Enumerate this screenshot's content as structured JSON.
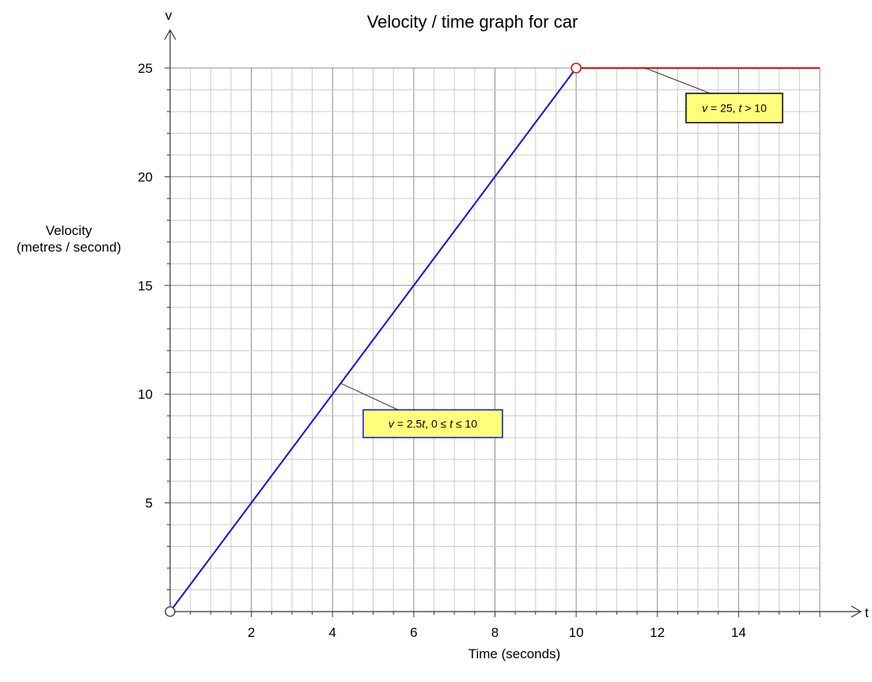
{
  "chart_data": {
    "type": "line",
    "title": "Velocity / time graph for car",
    "xlabel": "Time (seconds)",
    "ylabel_line1": "Velocity",
    "ylabel_line2": "(metres / second)",
    "x_axis_letter": "t",
    "y_axis_letter": "v",
    "xlim": [
      0,
      16
    ],
    "ylim": [
      0,
      25
    ],
    "x_ticks": [
      2,
      4,
      6,
      8,
      10,
      12,
      14
    ],
    "y_ticks": [
      5,
      10,
      15,
      20,
      25
    ],
    "x_minor_step": 0.5,
    "y_minor_step": 1,
    "grid": true,
    "series": [
      {
        "color": "#1010e0",
        "points": [
          [
            0,
            0
          ],
          [
            10,
            25
          ]
        ]
      },
      {
        "color": "#e01010",
        "points": [
          [
            10,
            25
          ],
          [
            16,
            25
          ]
        ]
      }
    ],
    "markers": [
      {
        "x": 0,
        "y": 0,
        "color": "#555555"
      },
      {
        "x": 10,
        "y": 25,
        "color": "#e01010"
      }
    ],
    "annotations": [
      {
        "parts": [
          [
            "v",
            true
          ],
          [
            " = 2.5",
            false
          ],
          [
            "t",
            true
          ],
          [
            ", 0 ≤  ",
            false
          ],
          [
            "t",
            true
          ],
          [
            " ≤  10",
            false
          ]
        ],
        "anchor": [
          4.2,
          10.5
        ],
        "border": "#1010e0"
      },
      {
        "parts": [
          [
            "v",
            true
          ],
          [
            " = 25, ",
            false
          ],
          [
            "t",
            true
          ],
          [
            " > 10",
            false
          ]
        ],
        "anchor": [
          11.7,
          25
        ],
        "border": "#000000"
      }
    ]
  }
}
